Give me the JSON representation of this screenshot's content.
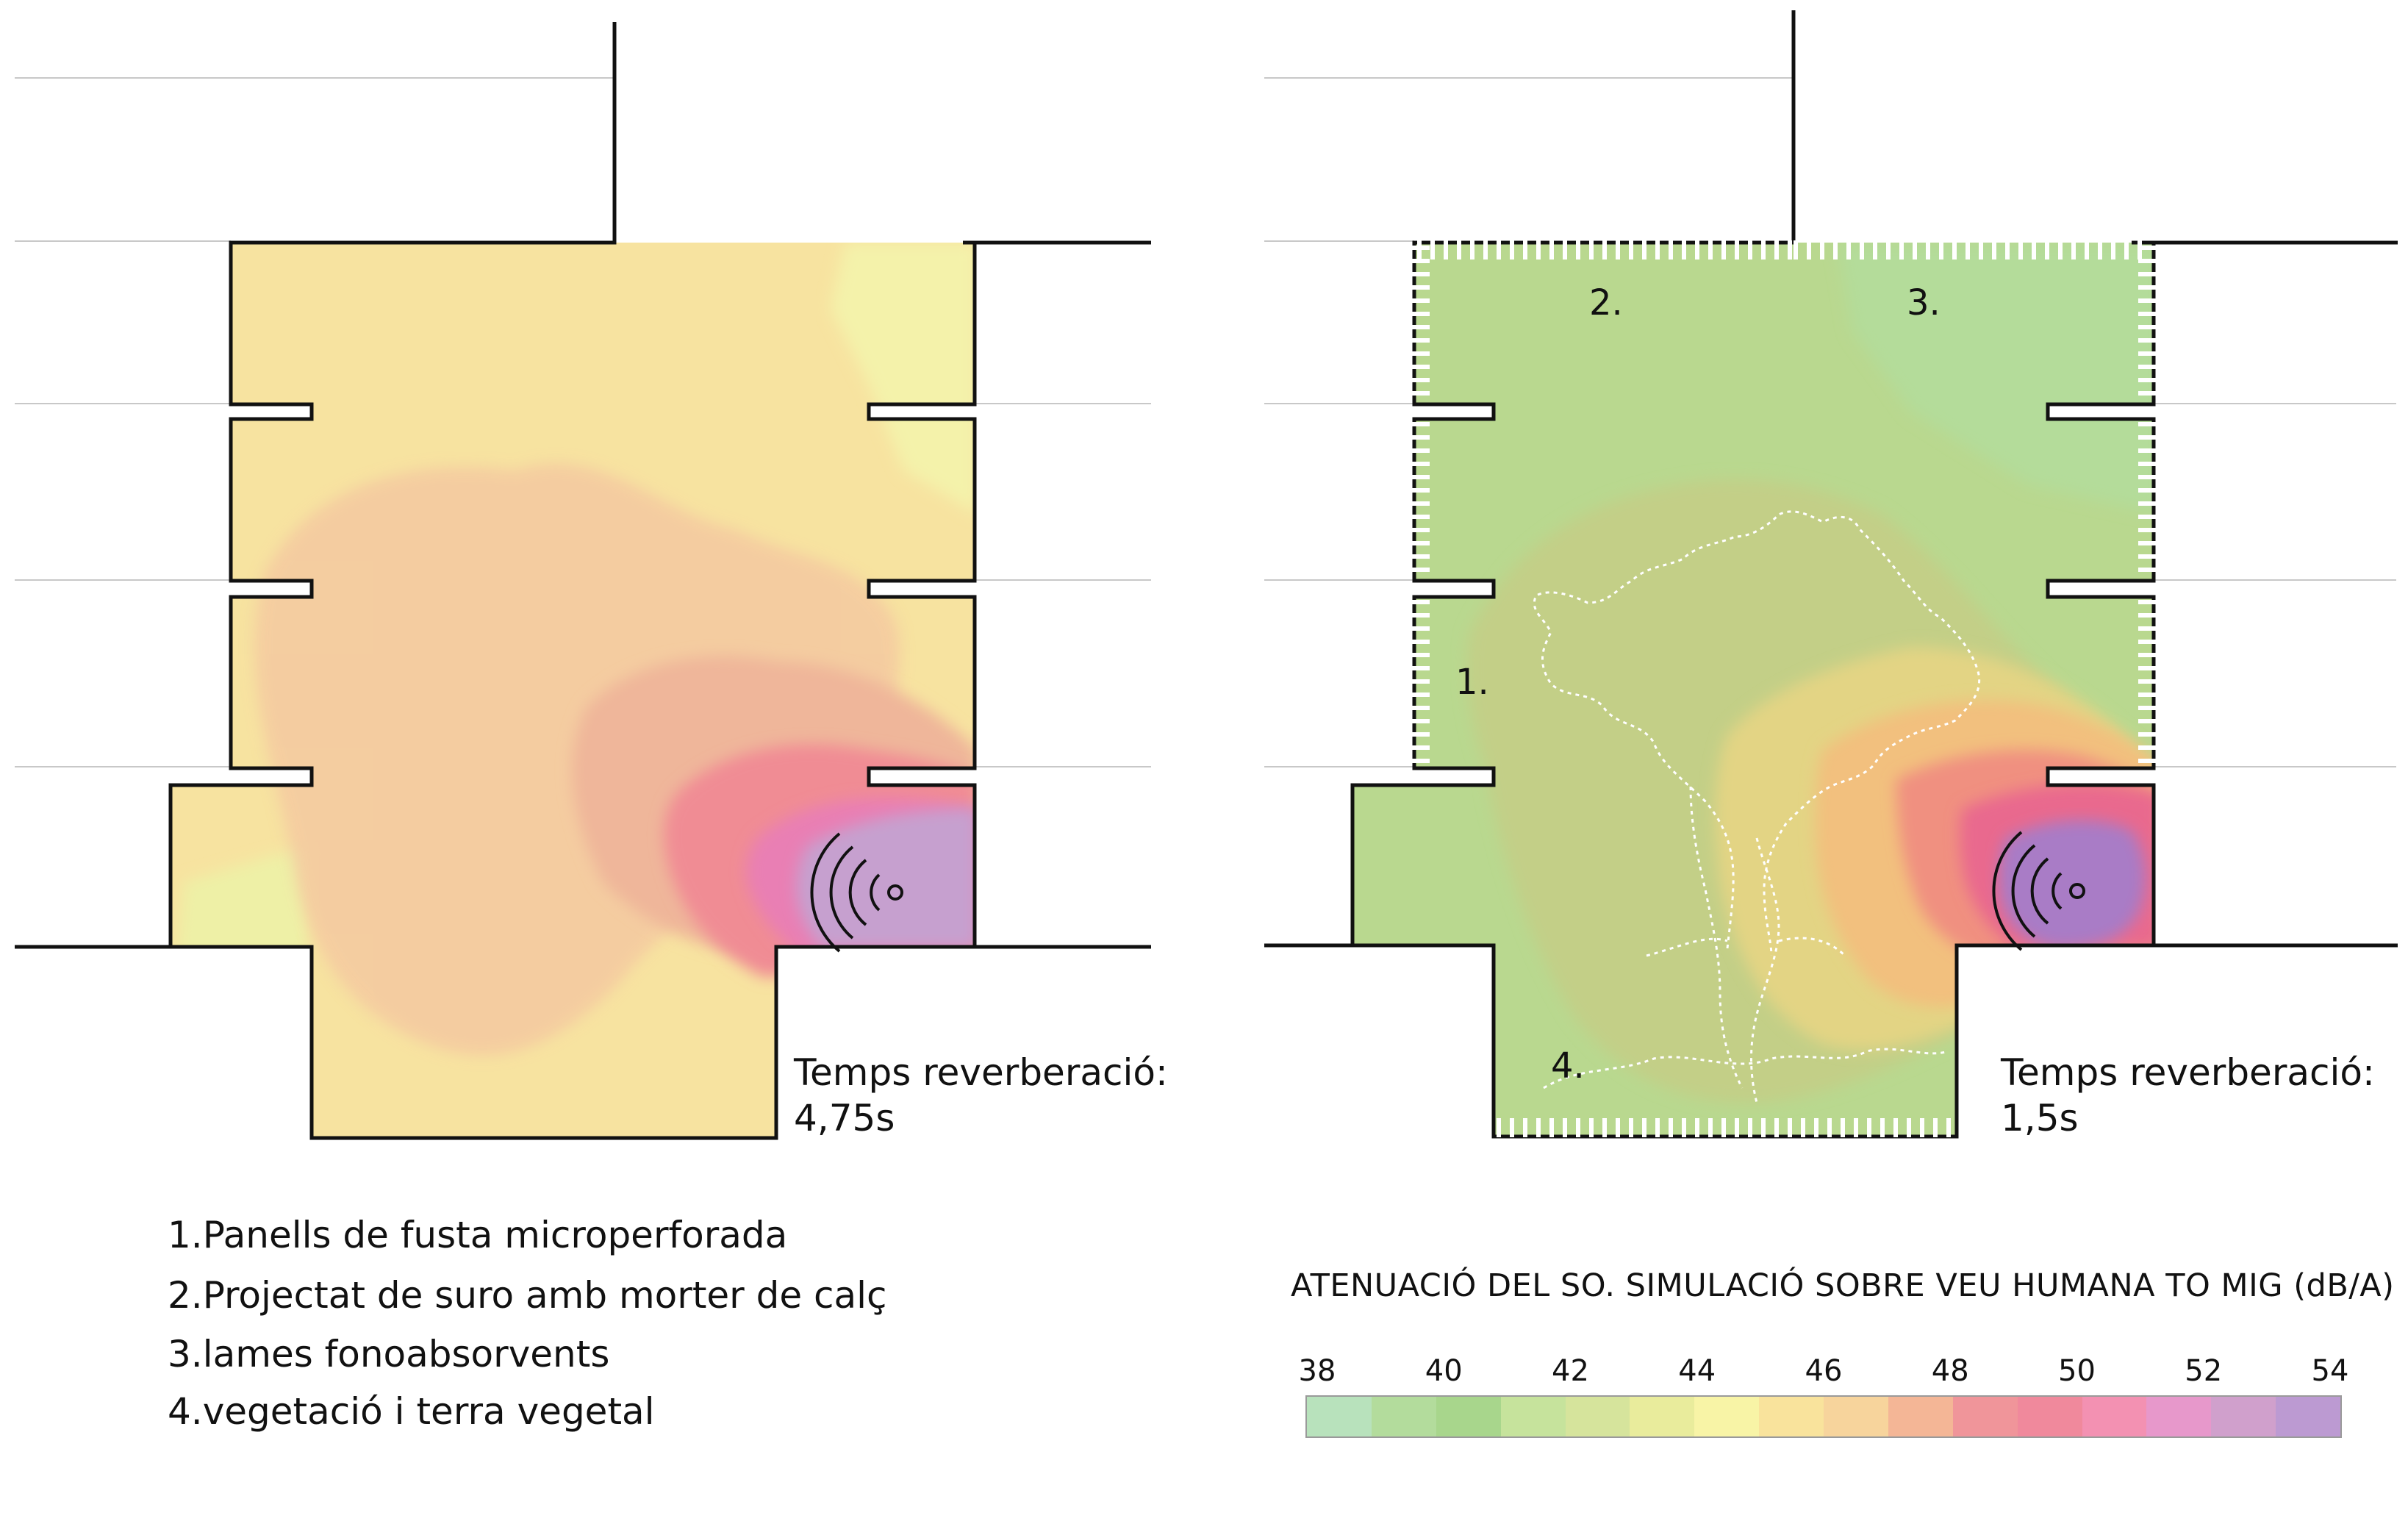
{
  "plans": [
    {
      "id": "before",
      "reverb_label": "Temps reverberació:",
      "reverb_value": "4,75s",
      "source_icon": "sound-source-icon",
      "zone_colors": {
        "base": "#f7e3a0",
        "outer": "#f4c9a0",
        "mid": "#efb69a",
        "inner": "#f08c94",
        "core": "#e97fb4",
        "center": "#c6a0cf"
      }
    },
    {
      "id": "after",
      "reverb_label": "Temps reverberació:",
      "reverb_value": "1,5s",
      "markers": [
        "1.",
        "2.",
        "3.",
        "4."
      ],
      "source_icon": "sound-source-icon",
      "overlay_icon": "tree-outline-icon",
      "zone_colors": {
        "base": "#b9d88f",
        "outer": "#c3cf87",
        "mid": "#f2c07e",
        "inner": "#f09080",
        "core": "#e9698e",
        "center": "#a97cc6"
      }
    }
  ],
  "legend": {
    "items": [
      "1.Panells de fusta microperforada",
      "2.Projectat de suro amb morter de calç",
      "3.lames fonoabsorvents",
      "4.vegetació i terra vegetal"
    ]
  },
  "scale": {
    "title": "ATENUACIÓ DEL SO. SIMULACIÓ SOBRE VEU HUMANA TO MIG (dB/A)",
    "ticks": [
      "38",
      "40",
      "42",
      "44",
      "46",
      "48",
      "50",
      "52",
      "54"
    ],
    "colors": [
      "#b8e2bc",
      "#b3dc9c",
      "#a8d68c",
      "#c6e39c",
      "#d6e49c",
      "#e9ec9c",
      "#f8f4a6",
      "#f9e39c",
      "#f7d49c",
      "#f4b696",
      "#f0959a",
      "#f0899c",
      "#f391b2",
      "#e798cb",
      "#d0a0cc",
      "#bc9ad2"
    ]
  }
}
